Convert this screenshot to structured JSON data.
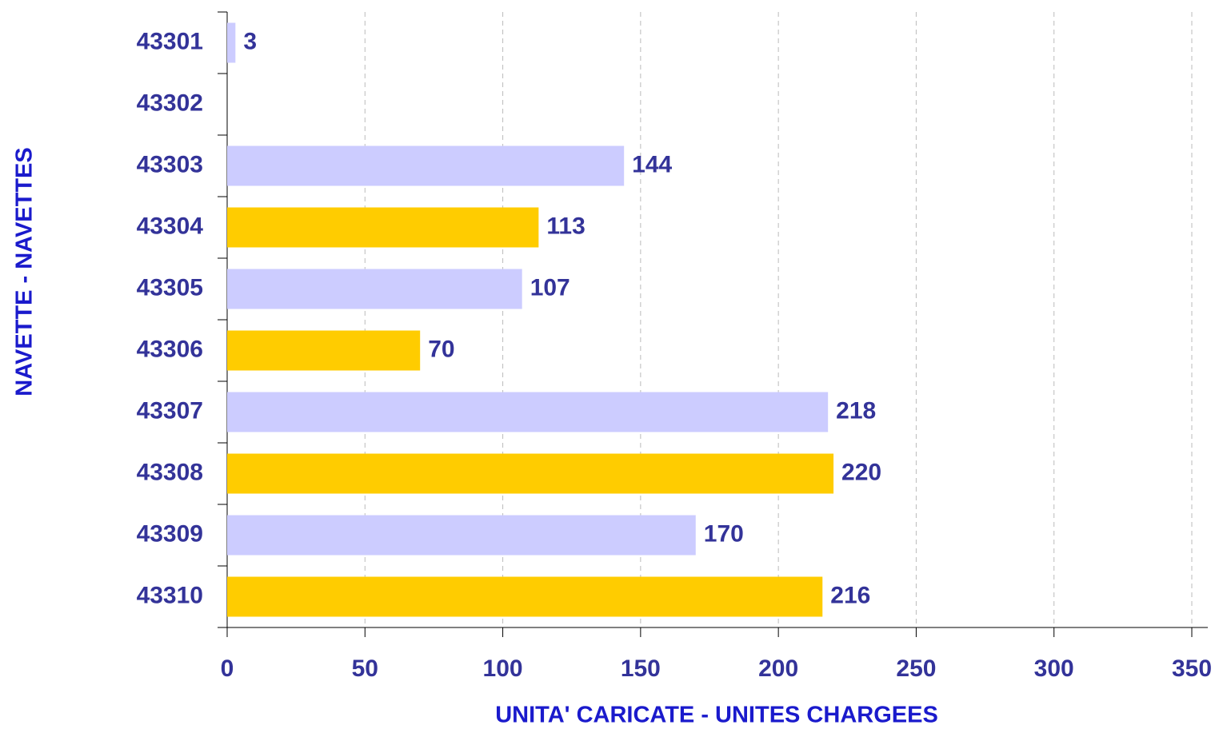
{
  "chart_data": {
    "type": "barh",
    "xlabel": "UNITA' CARICATE - UNITES CHARGEES",
    "ylabel": "NAVETTE - NAVETTES",
    "categories": [
      "43301",
      "43302",
      "43303",
      "43304",
      "43305",
      "43306",
      "43307",
      "43308",
      "43309",
      "43310"
    ],
    "values": [
      3,
      null,
      144,
      113,
      107,
      70,
      218,
      220,
      170,
      216
    ],
    "colors": [
      "#ccccff",
      "#ffcc00",
      "#ccccff",
      "#ffcc00",
      "#ccccff",
      "#ffcc00",
      "#ccccff",
      "#ffcc00",
      "#ccccff",
      "#ffcc00"
    ],
    "xlim": [
      0,
      350
    ],
    "xticks": [
      0,
      50,
      100,
      150,
      200,
      250,
      300,
      350
    ],
    "grid": true
  }
}
